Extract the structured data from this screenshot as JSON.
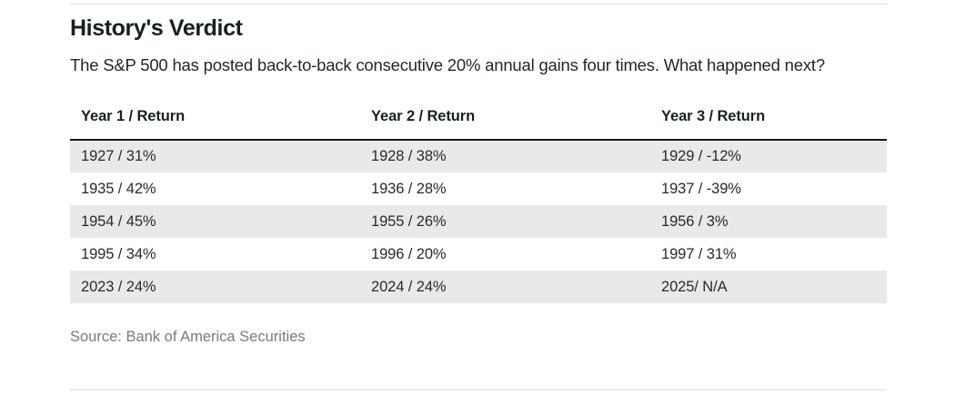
{
  "header": {
    "title": "History's Verdict",
    "subtitle": "The S&P 500 has posted back-to-back consecutive 20% annual gains four times. What happened next?"
  },
  "chart_data": {
    "type": "table",
    "title": "History's Verdict",
    "subtitle": "The S&P 500 has posted back-to-back consecutive 20% annual gains four times. What happened next?",
    "columns": [
      "Year 1 / Return",
      "Year 2 / Return",
      "Year 3 / Return"
    ],
    "rows": [
      [
        "1927 / 31%",
        "1928 / 38%",
        "1929 / -12%"
      ],
      [
        "1935 / 42%",
        "1936 / 28%",
        "1937 / -39%"
      ],
      [
        "1954 / 45%",
        "1955 / 26%",
        "1956 / 3%"
      ],
      [
        "1995 / 34%",
        "1996 / 20%",
        "1997 / 31%"
      ],
      [
        "2023 / 24%",
        "2024 / 24%",
        "2025/ N/A"
      ]
    ],
    "records": [
      {
        "year1": 1927,
        "return1_pct": 31,
        "year2": 1928,
        "return2_pct": 38,
        "year3": 1929,
        "return3_pct": -12
      },
      {
        "year1": 1935,
        "return1_pct": 42,
        "year2": 1936,
        "return2_pct": 28,
        "year3": 1937,
        "return3_pct": -39
      },
      {
        "year1": 1954,
        "return1_pct": 45,
        "year2": 1955,
        "return2_pct": 26,
        "year3": 1956,
        "return3_pct": 3
      },
      {
        "year1": 1995,
        "return1_pct": 34,
        "year2": 1996,
        "return2_pct": 20,
        "year3": 1997,
        "return3_pct": 31
      },
      {
        "year1": 2023,
        "return1_pct": 24,
        "year2": 2024,
        "return2_pct": 24,
        "year3": 2025,
        "return3_pct": null
      }
    ],
    "source": "Source: Bank of America Securities",
    "layout": {
      "striped_rows": "rows 1, 3, 5 shaded gray",
      "header_rule": "heavy black line under column headers",
      "legend": "none",
      "grid": "off"
    }
  },
  "footer": {
    "source": "Source: Bank of America Securities"
  },
  "colors": {
    "background": "#ffffff",
    "title_text": "#17211d",
    "body_text": "#1e2823",
    "cell_text": "#232d2a",
    "row_shade": "#e9e9e9",
    "header_rule": "#191919",
    "divider_rule": "#dcdcdc",
    "source_text": "#787a7c"
  }
}
